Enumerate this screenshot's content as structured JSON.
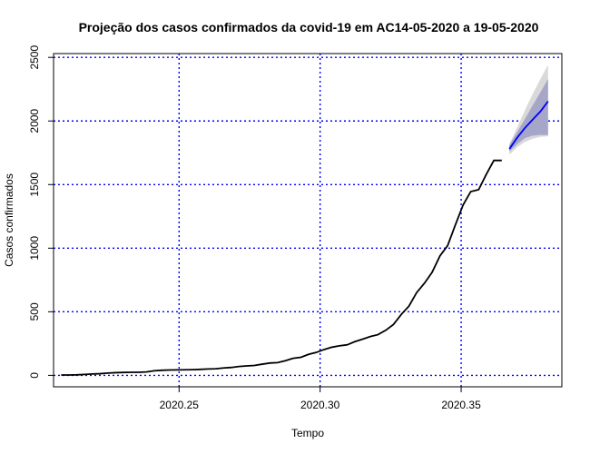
{
  "chart_data": {
    "type": "line",
    "title": "Projeção dos casos confirmados da covid-19 em AC14-05-2020 a 19-05-2020",
    "xlabel": "Tempo",
    "ylabel": "Casos confirmados",
    "xlim": [
      2020.2055,
      2020.3857
    ],
    "ylim": [
      -90,
      2530
    ],
    "x_ticks": [
      {
        "value": 2020.25,
        "label": "2020.25"
      },
      {
        "value": 2020.3,
        "label": "2020.30"
      },
      {
        "value": 2020.35,
        "label": "2020.35"
      }
    ],
    "y_ticks": [
      {
        "value": 0,
        "label": "0"
      },
      {
        "value": 500,
        "label": "500"
      },
      {
        "value": 1000,
        "label": "1000"
      },
      {
        "value": 1500,
        "label": "1500"
      },
      {
        "value": 2000,
        "label": "2000"
      },
      {
        "value": 2500,
        "label": "2500"
      }
    ],
    "grid": true,
    "grid_style": "dotted",
    "grid_color": "#0000ff",
    "colors": {
      "observed": "#000000",
      "forecast": "#0000ff",
      "band_80": "#a6a6c8",
      "band_95": "#d9d9d9"
    },
    "observed": {
      "x": [
        2020.2082,
        2020.2109,
        2020.2137,
        2020.2164,
        2020.2192,
        2020.2219,
        2020.2247,
        2020.2274,
        2020.2301,
        2020.2329,
        2020.2356,
        2020.2384,
        2020.2411,
        2020.2438,
        2020.2466,
        2020.2493,
        2020.2521,
        2020.2548,
        2020.2575,
        2020.2603,
        2020.263,
        2020.2658,
        2020.2685,
        2020.2712,
        2020.274,
        2020.2767,
        2020.2795,
        2020.2822,
        2020.2849,
        2020.2877,
        2020.2904,
        2020.2932,
        2020.2959,
        2020.2986,
        2020.3014,
        2020.3041,
        2020.3068,
        2020.3096,
        2020.3123,
        2020.3151,
        2020.3178,
        2020.3205,
        2020.3233,
        2020.326,
        2020.3288,
        2020.3315,
        2020.3342,
        2020.337,
        2020.3397,
        2020.3425,
        2020.3452,
        2020.3479,
        2020.3507,
        2020.3534,
        2020.3562,
        2020.3589,
        2020.3616,
        2020.3644
      ],
      "y": [
        3,
        3,
        4,
        7,
        11,
        13,
        18,
        21,
        23,
        24,
        24,
        27,
        36,
        40,
        42,
        43,
        44,
        45,
        47,
        50,
        52,
        58,
        62,
        70,
        74,
        78,
        88,
        97,
        100,
        115,
        134,
        142,
        165,
        180,
        203,
        221,
        232,
        240,
        265,
        285,
        305,
        320,
        355,
        400,
        480,
        545,
        650,
        725,
        810,
        940,
        1020,
        1180,
        1340,
        1445,
        1460,
        1580,
        1690,
        1690
      ]
    },
    "forecast": {
      "x": [
        2020.3671,
        2020.3699,
        2020.3726,
        2020.3753,
        2020.3781,
        2020.3808
      ],
      "mean": [
        1780,
        1870,
        1945,
        2010,
        2075,
        2155
      ],
      "lo80": [
        1760,
        1820,
        1865,
        1885,
        1890,
        1890
      ],
      "hi80": [
        1810,
        1915,
        2015,
        2120,
        2225,
        2330
      ],
      "lo95": [
        1735,
        1795,
        1835,
        1860,
        1875,
        1880
      ],
      "hi95": [
        1820,
        1950,
        2085,
        2210,
        2330,
        2440
      ]
    }
  }
}
